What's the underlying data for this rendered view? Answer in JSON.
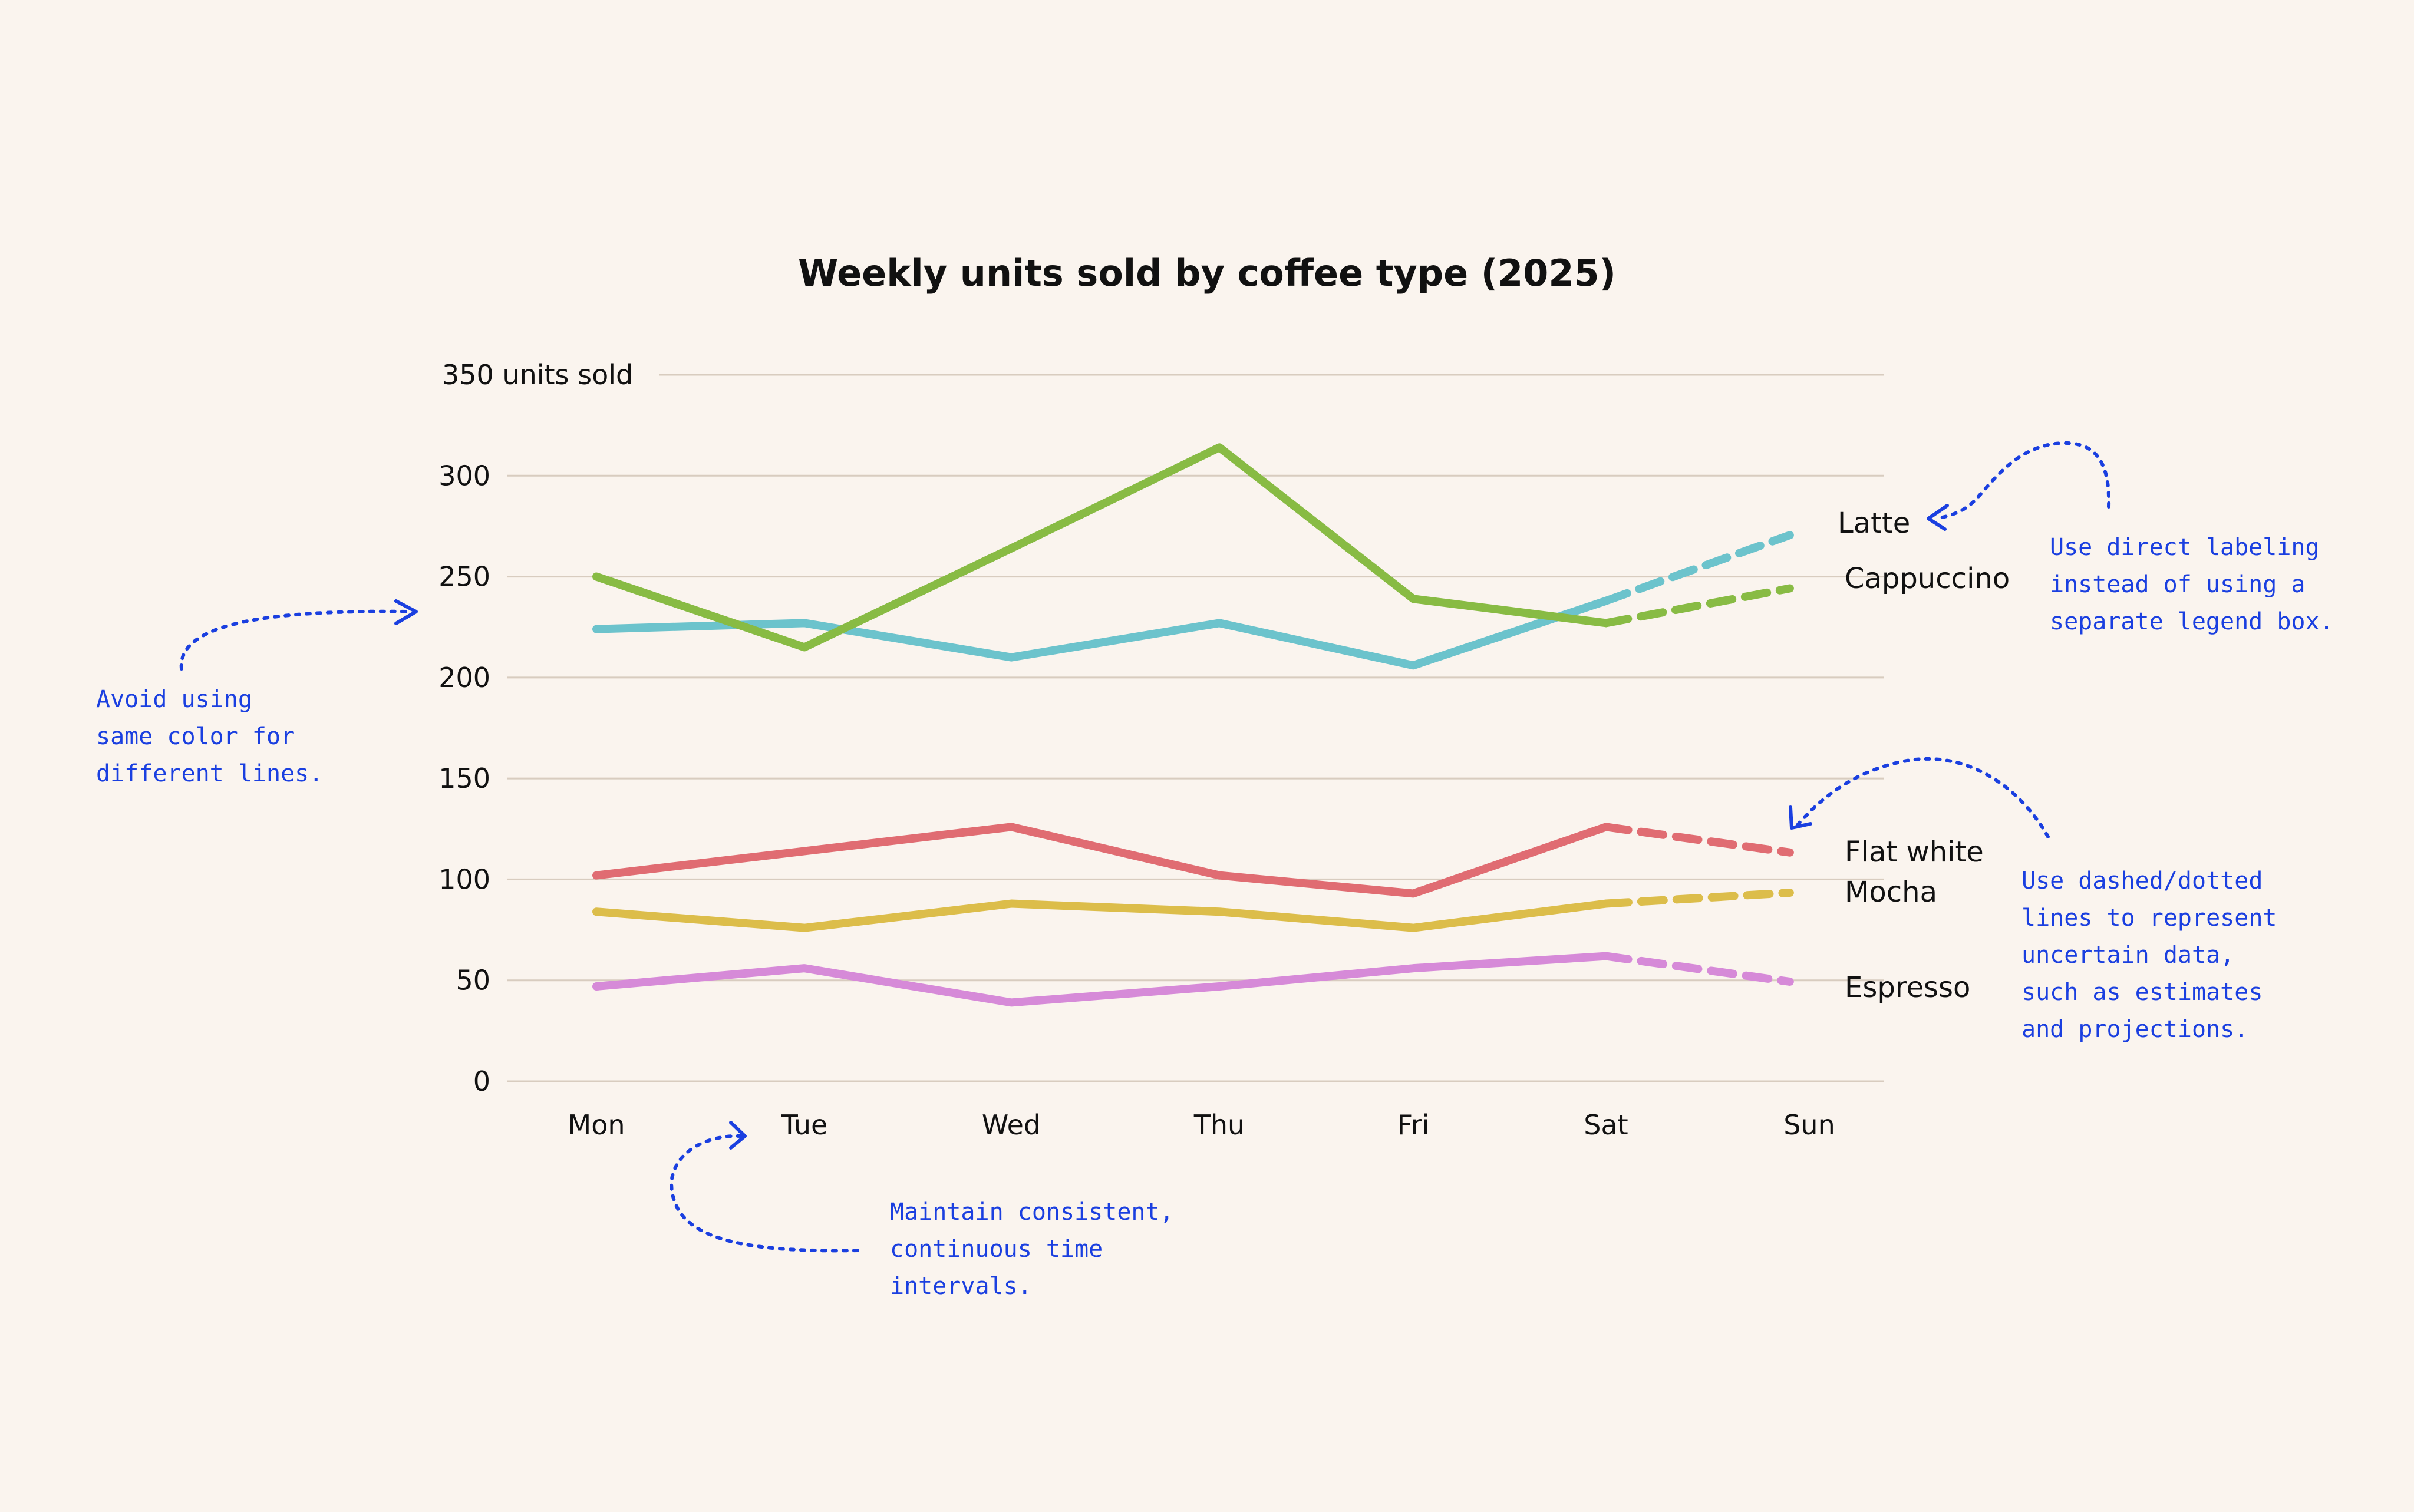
{
  "chart_data": {
    "type": "line",
    "title": "Weekly units sold by coffee type (2025)",
    "ylabel": "units sold",
    "xlabel": "",
    "categories": [
      "Mon",
      "Tue",
      "Wed",
      "Thu",
      "Fri",
      "Sat",
      "Sun"
    ],
    "ylim": [
      0,
      350
    ],
    "yticks": [
      0,
      50,
      100,
      150,
      200,
      250,
      300,
      350
    ],
    "top_tick_label": "350 units sold",
    "estimated_from_index": 5,
    "series": [
      {
        "name": "Latte",
        "color": "#6cc3cc",
        "values": [
          224,
          227,
          210,
          227,
          206,
          238,
          274
        ]
      },
      {
        "name": "Cappuccino",
        "color": "#88bb44",
        "values": [
          250,
          215,
          264,
          314,
          239,
          227,
          246
        ]
      },
      {
        "name": "Flat white",
        "color": "#e06c72",
        "values": [
          102,
          114,
          126,
          102,
          93,
          126,
          112
        ]
      },
      {
        "name": "Mocha",
        "color": "#dcbd4a",
        "values": [
          84,
          76,
          88,
          84,
          76,
          88,
          94
        ]
      },
      {
        "name": "Espresso",
        "color": "#d68ad8",
        "values": [
          47,
          56,
          39,
          47,
          56,
          62,
          48
        ]
      }
    ],
    "annotations": [
      {
        "id": "color",
        "lines": [
          "Avoid using",
          "same color for",
          "different lines."
        ]
      },
      {
        "id": "labeling",
        "lines": [
          "Use direct labeling",
          "instead of using a",
          "separate legend box."
        ]
      },
      {
        "id": "dashed",
        "lines": [
          "Use dashed/dotted",
          "lines to represent",
          "uncertain data,",
          "such as estimates",
          "and projections."
        ]
      },
      {
        "id": "intervals",
        "lines": [
          "Maintain consistent,",
          "continuous time",
          "intervals."
        ]
      }
    ]
  }
}
